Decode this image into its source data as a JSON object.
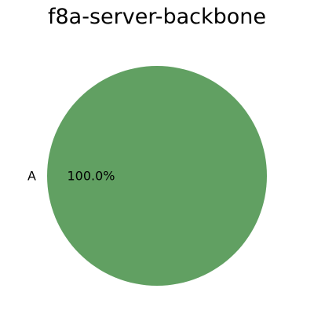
{
  "chart_data": {
    "type": "pie",
    "title": "f8a-server-backbone",
    "slices": [
      {
        "label": "A",
        "value": 100,
        "percent_label": "100.0%",
        "color": "#61a062"
      }
    ],
    "legend": false,
    "grid": false
  }
}
